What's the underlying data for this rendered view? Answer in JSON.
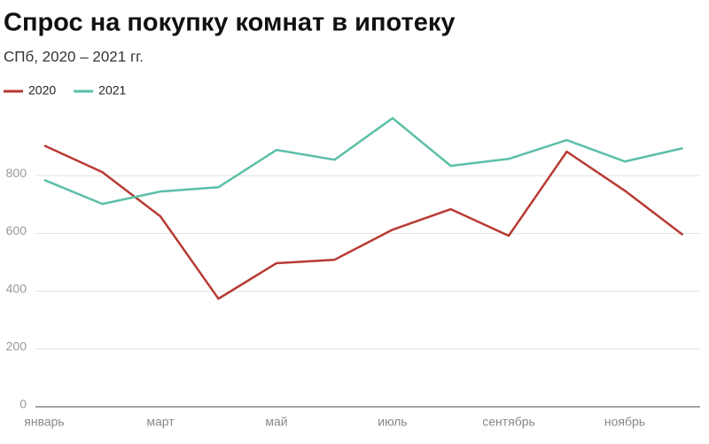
{
  "chart_data": {
    "type": "line",
    "title": "Спрос на покупку комнат в ипотеку",
    "subtitle": "СПб, 2020 – 2021 гг.",
    "categories": [
      "январь",
      null,
      "март",
      null,
      "май",
      null,
      "июль",
      null,
      "сентябрь",
      null,
      "ноябрь",
      null
    ],
    "series": [
      {
        "name": "2020",
        "color": "#b83a32",
        "values": [
          904,
          812,
          659,
          374,
          497,
          509,
          613,
          684,
          592,
          883,
          748,
          595
        ]
      },
      {
        "name": "2021",
        "color": "#5bbfa8",
        "values": [
          785,
          702,
          745,
          760,
          889,
          855,
          999,
          834,
          858,
          923,
          849,
          895
        ]
      }
    ],
    "ylim": [
      0,
      1000
    ],
    "yticks": [
      0,
      200,
      400,
      600,
      800
    ],
    "grid": true
  }
}
